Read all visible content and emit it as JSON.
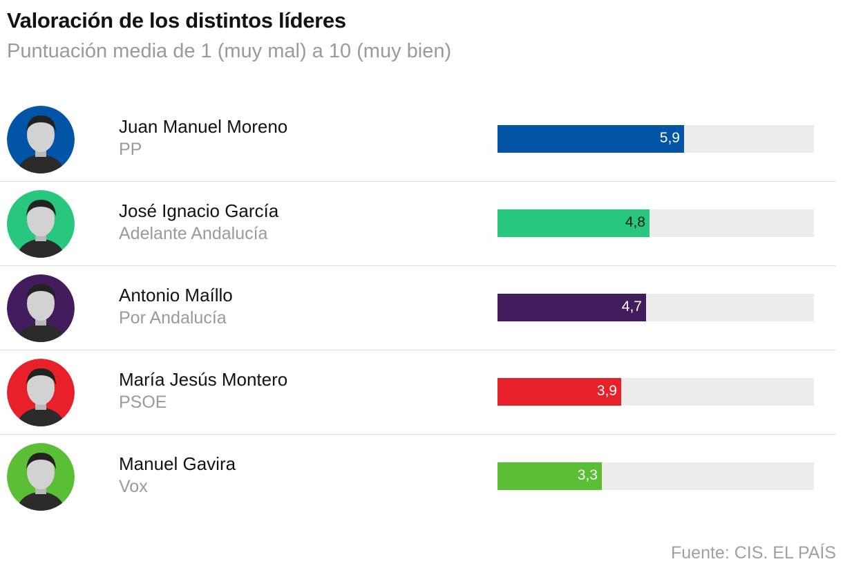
{
  "header": {
    "title": "Valoración de los distintos líderes",
    "subtitle": "Puntuación media de 1 (muy mal) a 10 (muy bien)"
  },
  "chart_data": {
    "type": "bar",
    "orientation": "horizontal",
    "title": "Valoración de los distintos líderes",
    "subtitle": "Puntuación media de 1 (muy mal) a 10 (muy bien)",
    "xlim": [
      0,
      10
    ],
    "grid": false,
    "categories": [
      "Juan Manuel Moreno",
      "José Ignacio García",
      "Antonio Maíllo",
      "María Jesús Montero",
      "Manuel Gavira"
    ],
    "values": [
      5.9,
      4.8,
      4.7,
      3.9,
      3.3
    ],
    "value_labels": [
      "5,9",
      "4,8",
      "4,7",
      "3,9",
      "3,3"
    ],
    "parties": [
      "PP",
      "Adelante Andalucía",
      "Por Andalucía",
      "PSOE",
      "Vox"
    ],
    "colors": [
      "#0254a6",
      "#27c77e",
      "#431c5d",
      "#e8202a",
      "#5abf35"
    ],
    "label_colors": [
      "#ffffff",
      "#1a1a1a",
      "#ffffff",
      "#ffffff",
      "#ffffff"
    ],
    "track_color": "#ececec"
  },
  "leaders": [
    {
      "name": "Juan Manuel Moreno",
      "party": "PP",
      "value_label": "5,9",
      "icon": "portrait-icon",
      "ring_color": "#0254a6"
    },
    {
      "name": "José Ignacio García",
      "party": "Adelante Andalucía",
      "value_label": "4,8",
      "icon": "portrait-icon",
      "ring_color": "#27c77e"
    },
    {
      "name": "Antonio Maíllo",
      "party": "Por Andalucía",
      "value_label": "4,7",
      "icon": "portrait-icon",
      "ring_color": "#431c5d"
    },
    {
      "name": "María Jesús Montero",
      "party": "PSOE",
      "value_label": "3,9",
      "icon": "portrait-icon",
      "ring_color": "#e8202a"
    },
    {
      "name": "Manuel Gavira",
      "party": "Vox",
      "value_label": "3,3",
      "icon": "portrait-icon",
      "ring_color": "#5abf35"
    }
  ],
  "footer": {
    "source": "Fuente: CIS. EL PAÍS"
  }
}
